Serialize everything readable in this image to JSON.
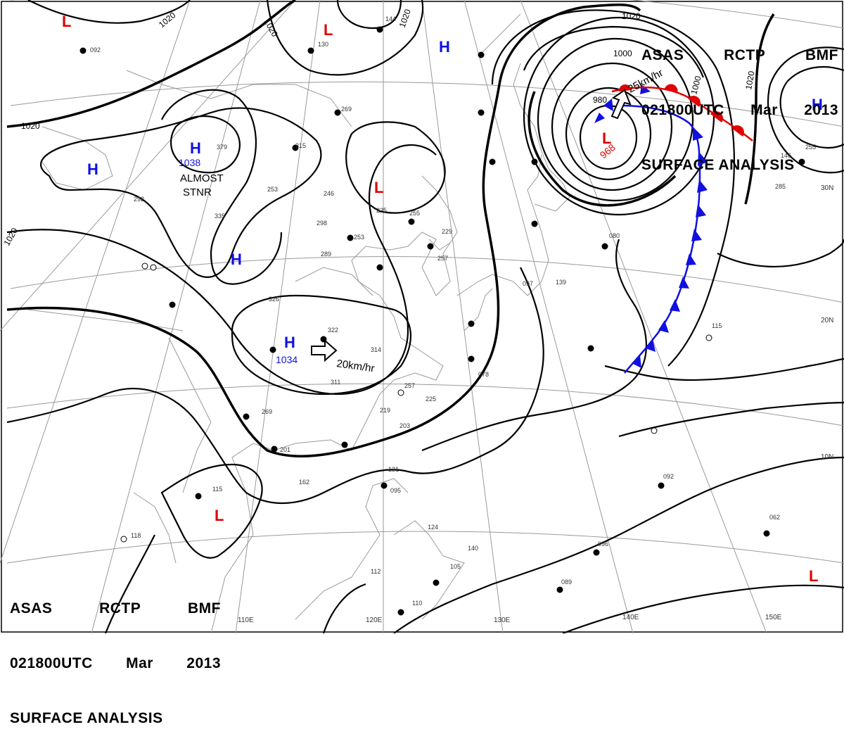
{
  "header": {
    "agency": "ASAS",
    "station": "RCTP",
    "office": "BMF",
    "datetime": "021800UTC",
    "month": "Mar",
    "year": "2013",
    "title": "SURFACE ANALYSIS"
  },
  "colors": {
    "high": "#1010e0",
    "low": "#e00000",
    "warm_front": "#e00000",
    "cold_front": "#1010e0",
    "isobar": "#000000",
    "coast": "#9a9a9a",
    "grid": "#9a9a9a"
  },
  "pressure_centers": [
    {
      "type": "L",
      "label": "L",
      "value": "",
      "name": "low-northwest-top"
    },
    {
      "type": "L",
      "label": "L",
      "value": "",
      "name": "low-north"
    },
    {
      "type": "H",
      "label": "H",
      "value": "",
      "name": "high-northeast-china"
    },
    {
      "type": "H",
      "label": "H",
      "value": "1038",
      "name": "high-mongolia"
    },
    {
      "type": "H",
      "label": "H",
      "value": "",
      "name": "high-west"
    },
    {
      "type": "H",
      "label": "H",
      "value": "",
      "name": "high-central"
    },
    {
      "type": "H",
      "label": "H",
      "value": "1034",
      "name": "high-south-china"
    },
    {
      "type": "L",
      "label": "L",
      "value": "",
      "name": "low-yellow-sea"
    },
    {
      "type": "L",
      "label": "L",
      "value": "968",
      "name": "low-kuril"
    },
    {
      "type": "H",
      "label": "H",
      "value": "",
      "name": "high-northeast-pacific"
    },
    {
      "type": "L",
      "label": "L",
      "value": "",
      "name": "low-indochina"
    },
    {
      "type": "L",
      "label": "L",
      "value": "",
      "name": "low-southeast-pacific"
    }
  ],
  "annotations": {
    "stationary_1": "ALMOST",
    "stationary_2": "STNR",
    "motion_high": "20km/hr",
    "motion_low": "25km/hr"
  },
  "isobar_labels": [
    "1020",
    "1020",
    "1020",
    "1020",
    "1020",
    "1020",
    "1000",
    "1000",
    "980",
    "1020"
  ],
  "latitude_labels": [
    "30N",
    "20N",
    "10N"
  ],
  "longitude_labels": [
    "110E",
    "120E",
    "130E",
    "140E",
    "150E"
  ],
  "station_samples": [
    "092",
    "130",
    "144",
    "269",
    "253",
    "315",
    "379",
    "246",
    "225",
    "298",
    "289",
    "253",
    "255",
    "229",
    "257",
    "314",
    "322",
    "311",
    "257",
    "225",
    "219",
    "203",
    "201",
    "269",
    "162",
    "131",
    "095",
    "115",
    "124",
    "140",
    "105",
    "112",
    "110",
    "118",
    "089",
    "062",
    "092",
    "096",
    "115",
    "139",
    "146",
    "255",
    "097",
    "078",
    "080",
    "326",
    "335",
    "285",
    "292"
  ]
}
